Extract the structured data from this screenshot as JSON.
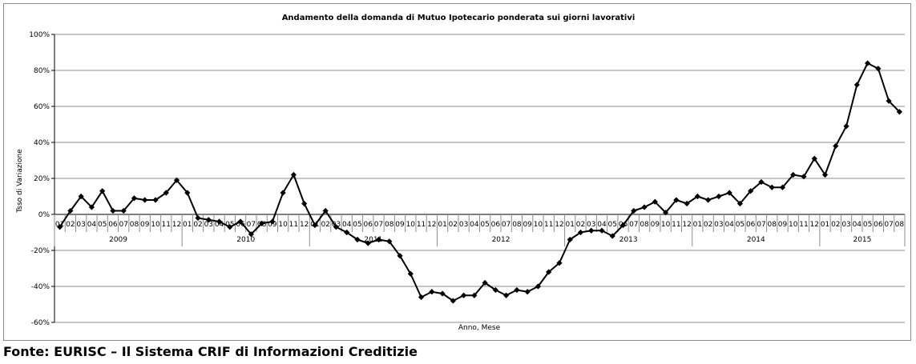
{
  "chart_data": {
    "type": "line",
    "title": "Andamento della domanda di Mutuo Ipotecario ponderata sui giorni lavorativi",
    "xlabel": "Anno, Mese",
    "ylabel": "Tsso di Variazione",
    "ylim": [
      -60,
      100
    ],
    "yticks": [
      "100%",
      "80%",
      "60%",
      "40%",
      "20%",
      "0%",
      "-20%",
      "-40%",
      "-60%"
    ],
    "ytick_values": [
      100,
      80,
      60,
      40,
      20,
      0,
      -20,
      -40,
      -60
    ],
    "grid": "horizontal",
    "legend": "none",
    "line_color": "#000000",
    "marker": "diamond",
    "years": [
      {
        "label": "2009",
        "months": [
          "01",
          "02",
          "03",
          "04",
          "05",
          "06",
          "07",
          "08",
          "09",
          "10",
          "11",
          "12"
        ]
      },
      {
        "label": "2010",
        "months": [
          "01",
          "02",
          "03",
          "04",
          "05",
          "06",
          "07",
          "08",
          "09",
          "10",
          "11",
          "12"
        ]
      },
      {
        "label": "2011",
        "months": [
          "01",
          "02",
          "03",
          "04",
          "05",
          "06",
          "07",
          "08",
          "09",
          "10",
          "11",
          "12"
        ]
      },
      {
        "label": "2012",
        "months": [
          "01",
          "02",
          "03",
          "04",
          "05",
          "06",
          "07",
          "08",
          "09",
          "10",
          "11",
          "12"
        ]
      },
      {
        "label": "2013",
        "months": [
          "01",
          "02",
          "03",
          "04",
          "05",
          "06",
          "07",
          "08",
          "09",
          "10",
          "11",
          "12"
        ]
      },
      {
        "label": "2014",
        "months": [
          "01",
          "02",
          "03",
          "04",
          "05",
          "06",
          "07",
          "08",
          "09",
          "10",
          "11",
          "12"
        ]
      },
      {
        "label": "2015",
        "months": [
          "01",
          "02",
          "03",
          "04",
          "05",
          "06",
          "07",
          "08"
        ]
      }
    ],
    "values": [
      -7,
      2,
      10,
      4,
      13,
      2,
      2,
      9,
      8,
      8,
      12,
      19,
      12,
      -2,
      -3,
      -4,
      -7,
      -4,
      -11,
      -5,
      -4,
      12,
      22,
      6,
      -6,
      2,
      -7,
      -10,
      -14,
      -16,
      -14,
      -15,
      -23,
      -33,
      -46,
      -43,
      -44,
      -48,
      -45,
      -45,
      -38,
      -42,
      -45,
      -42,
      -43,
      -40,
      -32,
      -27,
      -14,
      -10,
      -9,
      -9,
      -12,
      -6,
      2,
      4,
      7,
      1,
      8,
      6,
      10,
      8,
      10,
      12,
      6,
      13,
      18,
      15,
      15,
      22,
      21,
      31,
      22,
      38,
      49,
      72,
      84,
      81,
      63,
      57
    ]
  },
  "source": "Fonte: EURISC – Il Sistema CRIF di Informazioni Creditizie"
}
